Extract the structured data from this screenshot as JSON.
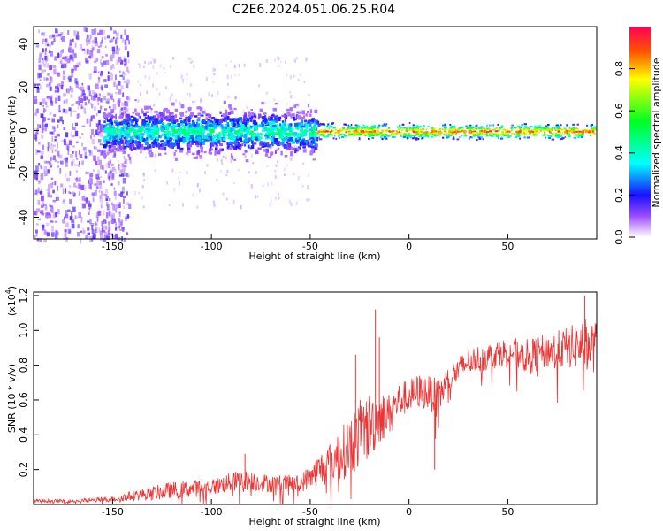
{
  "chart_data": [
    {
      "type": "heatmap",
      "title": "C2E6.2024.051.06.25.R04",
      "xlabel": "Height of straight line (km)",
      "ylabel": "Frequency (Hz)",
      "xlim": [
        -190,
        95
      ],
      "ylim": [
        -50,
        48
      ],
      "x_ticks": [
        -150,
        -100,
        -50,
        0,
        50
      ],
      "y_ticks": [
        -40,
        -20,
        0,
        20,
        40
      ],
      "colorbar": {
        "label": "Normalized spectral amplitude",
        "range": [
          0.0,
          1.0
        ],
        "ticks": [
          0.0,
          0.2,
          0.4,
          0.6,
          0.8
        ]
      },
      "description_regions": [
        {
          "x_range": [
            -190,
            -145
          ],
          "freq_spread": [
            -50,
            48
          ],
          "amplitude": 0.15
        },
        {
          "x_range": [
            -155,
            -50
          ],
          "freq_spread": [
            -12,
            12
          ],
          "amplitude": 0.35
        },
        {
          "x_range": [
            -50,
            95
          ],
          "freq_spread": [
            -4,
            4
          ],
          "amplitude": 0.8
        }
      ]
    },
    {
      "type": "line",
      "title": "",
      "xlabel": "Height of straight line (km)",
      "ylabel": "SNR (10 * v/v)",
      "y_scale_label": "(x10",
      "y_scale_exp": "4",
      "y_scale_close": ")",
      "xlim": [
        -190,
        95
      ],
      "ylim": [
        0,
        1.22
      ],
      "x_ticks": [
        -150,
        -100,
        -50,
        0,
        50
      ],
      "y_ticks": [
        0.2,
        0.4,
        0.6,
        0.8,
        1.0,
        1.2
      ],
      "y_tick_labels": [
        "0.2",
        "0.4",
        "0.6",
        "0.8",
        "1.0",
        "1.2"
      ],
      "series_color": "#ee3333",
      "envelope": {
        "x": [
          -190,
          -170,
          -150,
          -140,
          -120,
          -100,
          -85,
          -70,
          -55,
          -45,
          -35,
          -25,
          -20,
          -15,
          -10,
          -5,
          0,
          5,
          10,
          15,
          20,
          30,
          40,
          50,
          60,
          70,
          80,
          90,
          95
        ],
        "y": [
          0.02,
          0.02,
          0.03,
          0.05,
          0.08,
          0.1,
          0.14,
          0.12,
          0.12,
          0.2,
          0.28,
          0.4,
          0.45,
          0.5,
          0.52,
          0.6,
          0.62,
          0.65,
          0.64,
          0.62,
          0.72,
          0.82,
          0.85,
          0.88,
          0.85,
          0.88,
          0.9,
          0.92,
          0.9
        ],
        "noise": [
          0.01,
          0.01,
          0.015,
          0.03,
          0.05,
          0.05,
          0.06,
          0.05,
          0.05,
          0.1,
          0.15,
          0.2,
          0.2,
          0.15,
          0.12,
          0.1,
          0.1,
          0.1,
          0.1,
          0.1,
          0.08,
          0.08,
          0.08,
          0.08,
          0.1,
          0.1,
          0.12,
          0.15,
          0.15
        ]
      },
      "spikes": [
        {
          "x": -83,
          "y": 0.29
        },
        {
          "x": -27,
          "y": 0.86
        },
        {
          "x": -17,
          "y": 1.12
        },
        {
          "x": -15,
          "y": 0.96
        },
        {
          "x": 13,
          "y": 0.2
        },
        {
          "x": 89,
          "y": 1.2
        }
      ]
    }
  ]
}
